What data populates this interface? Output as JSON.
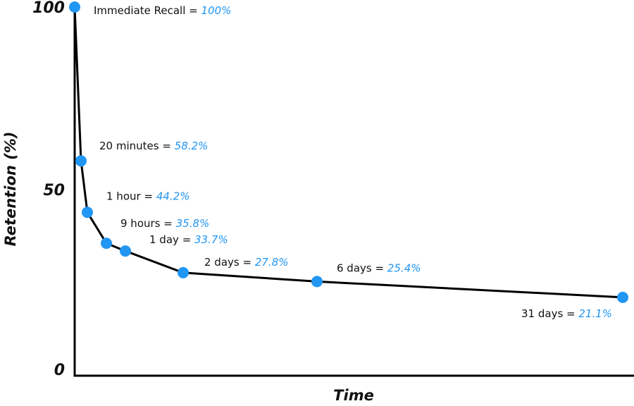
{
  "chart_data": {
    "type": "line",
    "x_label": "Time",
    "y_label": "Retention (%)",
    "categories": [
      "Immediate Recall",
      "20 minutes",
      "1 hour",
      "9 hours",
      "1 day",
      "2 days",
      "6 days",
      "31 days"
    ],
    "label_separator": "=",
    "values": [
      100,
      58.2,
      44.2,
      35.8,
      33.7,
      27.8,
      25.4,
      21.1
    ],
    "value_labels": [
      "100%",
      "58.2%",
      "44.2%",
      "35.8%",
      "33.7%",
      "27.8%",
      "25.4%",
      "21.1%"
    ],
    "color": "#2196f3",
    "line_color": "#000000",
    "ylim": [
      0,
      100
    ],
    "yticks": [
      0,
      50,
      100
    ],
    "grid": false
  }
}
